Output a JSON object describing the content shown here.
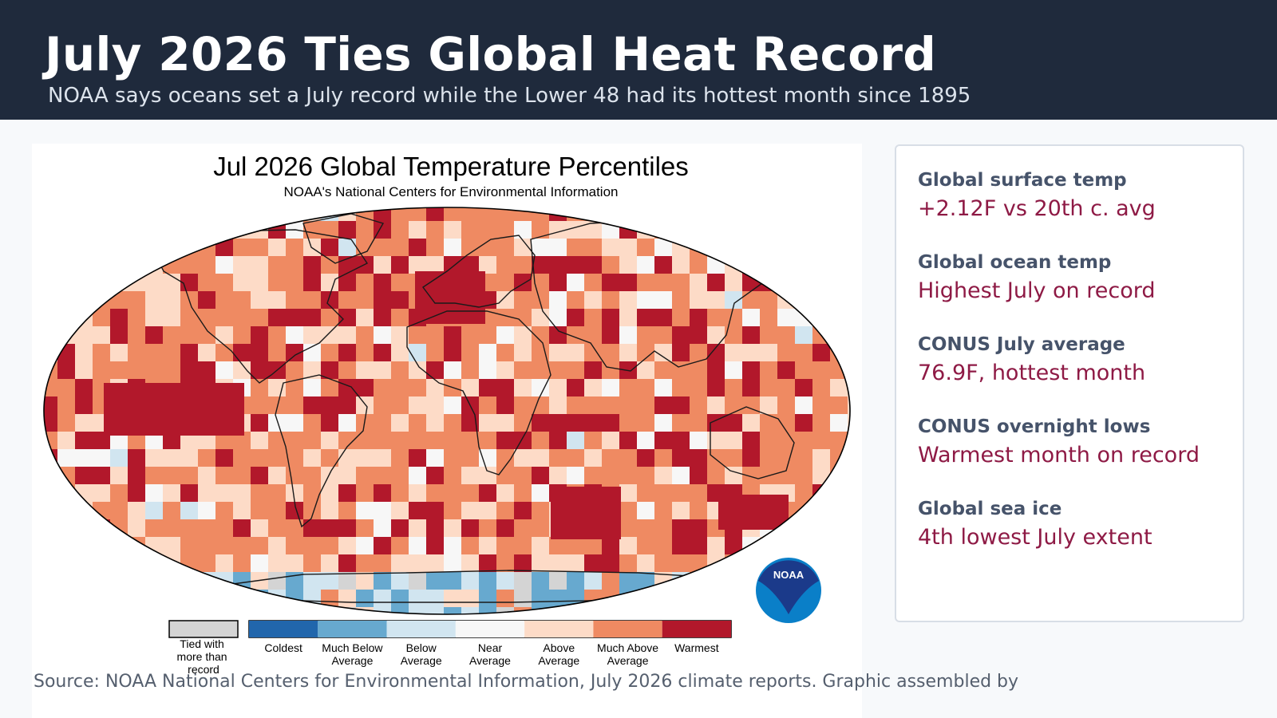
{
  "header": {
    "headline": "July 2026 Ties Global Heat Record",
    "dek": "NOAA says oceans set a July record while the Lower 48 had its hottest month since 1895"
  },
  "figure": {
    "title": "Jul 2026 Global Temperature Percentiles",
    "subtitle": "NOAA's National Centers for Environmental Information",
    "logo_text": "NOAA",
    "legend": {
      "tied": "Tied with more than record",
      "categories": [
        {
          "label": "Coldest",
          "color": "#2166ac"
        },
        {
          "label": "Much Below Average",
          "color": "#67a9cf"
        },
        {
          "label": "Below Average",
          "color": "#d1e5f0"
        },
        {
          "label": "Near Average",
          "color": "#f7f7f7"
        },
        {
          "label": "Above Average",
          "color": "#fddbc7"
        },
        {
          "label": "Much Above Average",
          "color": "#ef8a62"
        },
        {
          "label": "Warmest",
          "color": "#b2182b"
        }
      ],
      "tied_color": "#d4d4d4"
    }
  },
  "stats": [
    {
      "label": "Global surface temp",
      "value": "+2.12F vs 20th c. avg"
    },
    {
      "label": "Global ocean temp",
      "value": "Highest July on record"
    },
    {
      "label": "CONUS July average",
      "value": "76.9F, hottest month"
    },
    {
      "label": "CONUS overnight lows",
      "value": "Warmest month on record"
    },
    {
      "label": "Global sea ice",
      "value": "4th lowest July extent"
    }
  ],
  "caption": "Source: NOAA National Centers for Environmental Information, July 2026 climate reports. Graphic assembled by",
  "colors": {
    "header_bg": "#1f2a3c",
    "accent": "#8e1a45",
    "label": "#46536a",
    "noaa_blue": "#0a7fc8",
    "noaa_navy": "#1b3a8a"
  }
}
